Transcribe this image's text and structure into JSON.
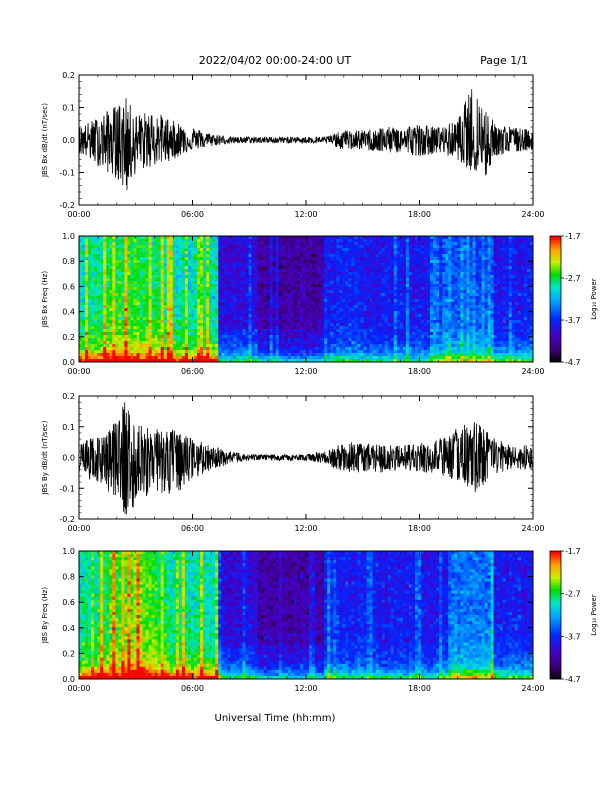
{
  "header": {
    "title": "2022/04/02  00:00-24:00 UT",
    "page": "Page 1/1"
  },
  "x_axis": {
    "title": "Universal Time (hh:mm)",
    "ticks": [
      "00:00",
      "06:00",
      "12:00",
      "18:00",
      "24:00"
    ]
  },
  "chart_data": [
    {
      "type": "line",
      "ylabel": "JBS Bx dB/dt (nT/sec)",
      "xlim": [
        0,
        24
      ],
      "ylim": [
        -0.2,
        0.2
      ],
      "yticks": [
        "0.2",
        "0.1",
        "0.0",
        "-0.1",
        "-0.2"
      ],
      "envelope": {
        "hours": [
          0,
          1,
          2,
          2.5,
          3,
          4,
          5,
          6,
          7,
          8,
          9,
          10,
          11,
          12,
          13,
          14,
          15,
          16,
          17,
          18,
          19,
          20,
          20.8,
          21.5,
          22,
          23,
          24
        ],
        "max": [
          0.04,
          0.07,
          0.11,
          0.13,
          0.08,
          0.09,
          0.06,
          0.04,
          0.02,
          0.01,
          0.01,
          0.01,
          0.01,
          0.01,
          0.01,
          0.03,
          0.03,
          0.04,
          0.04,
          0.05,
          0.04,
          0.06,
          0.17,
          0.1,
          0.05,
          0.04,
          0.03
        ],
        "min": [
          -0.04,
          -0.08,
          -0.12,
          -0.17,
          -0.1,
          -0.08,
          -0.06,
          -0.03,
          -0.02,
          -0.01,
          -0.01,
          -0.01,
          -0.01,
          -0.01,
          -0.01,
          -0.03,
          -0.03,
          -0.04,
          -0.04,
          -0.05,
          -0.04,
          -0.06,
          -0.1,
          -0.12,
          -0.05,
          -0.04,
          -0.03
        ]
      }
    },
    {
      "type": "heatmap",
      "ylabel": "JBS Bx Freq (Hz)",
      "colorbar_label": "Log₁₀ Power",
      "xlim": [
        0,
        24
      ],
      "ylim": [
        0,
        1.0
      ],
      "yticks": [
        "1.0",
        "0.8",
        "0.6",
        "0.4",
        "0.2",
        "0.0"
      ],
      "colorbar_ticks": [
        "-1.7",
        "-2.7",
        "-3.7",
        "-4.7"
      ],
      "zlim": [
        -4.7,
        -1.7
      ]
    },
    {
      "type": "line",
      "ylabel": "JBS By dB/dt (nT/sec)",
      "xlim": [
        0,
        24
      ],
      "ylim": [
        -0.2,
        0.2
      ],
      "yticks": [
        "0.2",
        "0.1",
        "0.0",
        "-0.1",
        "-0.2"
      ],
      "envelope": {
        "hours": [
          0,
          1,
          2,
          2.5,
          3,
          4,
          5,
          6,
          7,
          8,
          9,
          10,
          11,
          12,
          13,
          14,
          15,
          16,
          17,
          18,
          19,
          20,
          21,
          22,
          23,
          24
        ],
        "max": [
          0.05,
          0.07,
          0.12,
          0.2,
          0.12,
          0.1,
          0.09,
          0.06,
          0.04,
          0.02,
          0.01,
          0.01,
          0.01,
          0.01,
          0.02,
          0.05,
          0.05,
          0.04,
          0.04,
          0.05,
          0.06,
          0.1,
          0.12,
          0.06,
          0.04,
          0.04
        ],
        "min": [
          -0.05,
          -0.09,
          -0.13,
          -0.2,
          -0.15,
          -0.11,
          -0.13,
          -0.07,
          -0.04,
          -0.02,
          -0.01,
          -0.01,
          -0.01,
          -0.01,
          -0.02,
          -0.05,
          -0.05,
          -0.05,
          -0.04,
          -0.05,
          -0.06,
          -0.08,
          -0.13,
          -0.06,
          -0.04,
          -0.04
        ]
      }
    },
    {
      "type": "heatmap",
      "ylabel": "JBS By Freq (Hz)",
      "colorbar_label": "Log₁₀ Power",
      "xlim": [
        0,
        24
      ],
      "ylim": [
        0,
        1.0
      ],
      "yticks": [
        "1.0",
        "0.8",
        "0.6",
        "0.4",
        "0.2",
        "0.0"
      ],
      "colorbar_ticks": [
        "-1.7",
        "-2.7",
        "-3.7",
        "-4.7"
      ],
      "zlim": [
        -4.7,
        -1.7
      ]
    }
  ]
}
